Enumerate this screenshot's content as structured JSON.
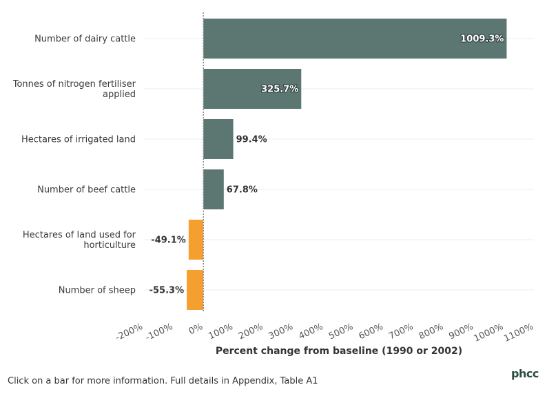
{
  "chart_data": {
    "type": "bar",
    "orientation": "horizontal",
    "categories": [
      [
        "Number of dairy cattle"
      ],
      [
        "Tonnes of nitrogen fertiliser",
        "applied"
      ],
      [
        "Hectares of irrigated land"
      ],
      [
        "Number of beef cattle"
      ],
      [
        "Hectares of land used for",
        "horticulture"
      ],
      [
        "Number of sheep"
      ]
    ],
    "values": [
      1009.3,
      325.7,
      99.4,
      67.8,
      -49.1,
      -55.3
    ],
    "value_labels": [
      "1009.3%",
      "325.7%",
      "99.4%",
      "67.8%",
      "-49.1%",
      "-55.3%"
    ],
    "xlim": [
      -200,
      1100
    ],
    "xticks": [
      -200,
      -100,
      0,
      100,
      200,
      300,
      400,
      500,
      600,
      700,
      800,
      900,
      1000,
      1100
    ],
    "xtick_labels": [
      "-200%",
      "-100%",
      "0%",
      "100%",
      "200%",
      "300%",
      "400%",
      "500%",
      "600%",
      "700%",
      "800%",
      "900%",
      "1000%",
      "1100%"
    ],
    "xlabel": "Percent change from baseline (1990 or 2002)",
    "colors": {
      "positive": "#5c7672",
      "negative": "#f59f31"
    },
    "grid": true
  },
  "footnote": "Click on a bar for more information. Full details in Appendix, Table A1",
  "logo_text": "phcc"
}
